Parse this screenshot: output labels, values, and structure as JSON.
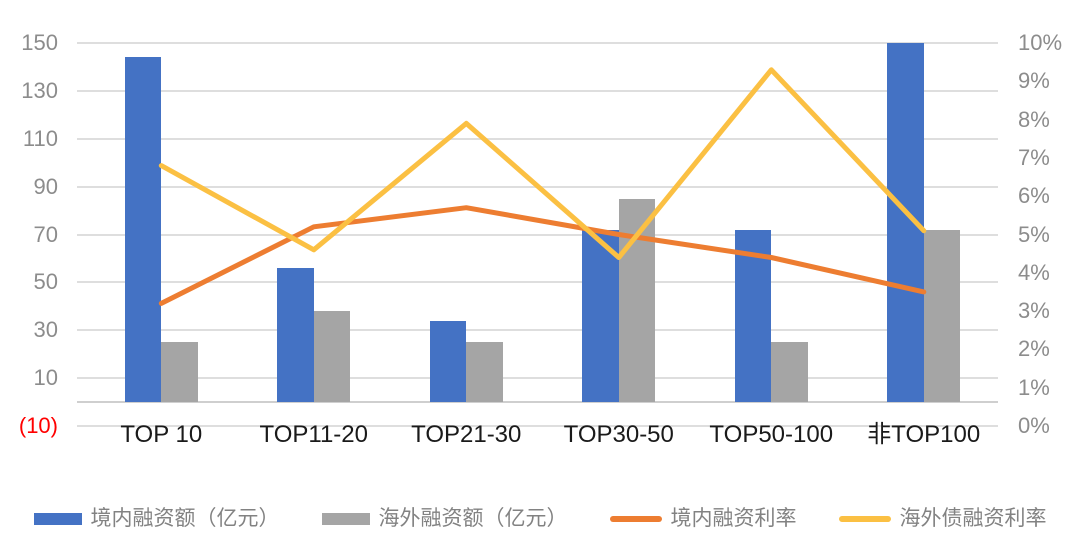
{
  "chart_data": {
    "type": "bar+line combo",
    "categories": [
      "TOP 10",
      "TOP11-20",
      "TOP21-30",
      "TOP30-50",
      "TOP50-100",
      "非TOP100"
    ],
    "bar_series": [
      {
        "key": "domestic-financing-amount",
        "name": "境内融资额（亿元）",
        "axis": "left",
        "color": "#4472C4",
        "values": [
          144,
          56,
          34,
          72,
          72,
          150
        ]
      },
      {
        "key": "overseas-financing-amount",
        "name": "海外融资额（亿元）",
        "axis": "left",
        "color": "#A5A5A5",
        "values": [
          25,
          38,
          25,
          85,
          25,
          72
        ]
      }
    ],
    "line_series": [
      {
        "key": "domestic-financing-rate",
        "name": "境内融资利率",
        "axis": "right",
        "color": "#ED7D31",
        "values_pct": [
          3.2,
          5.2,
          5.7,
          5.0,
          4.4,
          3.5
        ]
      },
      {
        "key": "overseas-debt-financing-rate",
        "name": "海外债融资利率",
        "axis": "right",
        "color": "#FBC043",
        "values_pct": [
          6.8,
          4.6,
          7.9,
          4.4,
          9.3,
          5.1
        ]
      }
    ],
    "left_axis": {
      "min": -10,
      "max": 150,
      "tick_labels": [
        "150",
        "130",
        "110",
        "90",
        "70",
        "50",
        "30",
        "10",
        "(10)"
      ],
      "tick_values": [
        150,
        130,
        110,
        90,
        70,
        50,
        30,
        10,
        -10
      ],
      "negative_label_color": "#FF0000"
    },
    "right_axis": {
      "min": 0,
      "max": 10,
      "tick_labels": [
        "10%",
        "9%",
        "8%",
        "7%",
        "6%",
        "5%",
        "4%",
        "3%",
        "2%",
        "1%",
        "0%"
      ],
      "tick_values": [
        10,
        9,
        8,
        7,
        6,
        5,
        4,
        3,
        2,
        1,
        0
      ]
    },
    "grid": true,
    "legend_position": "bottom",
    "title": ""
  }
}
